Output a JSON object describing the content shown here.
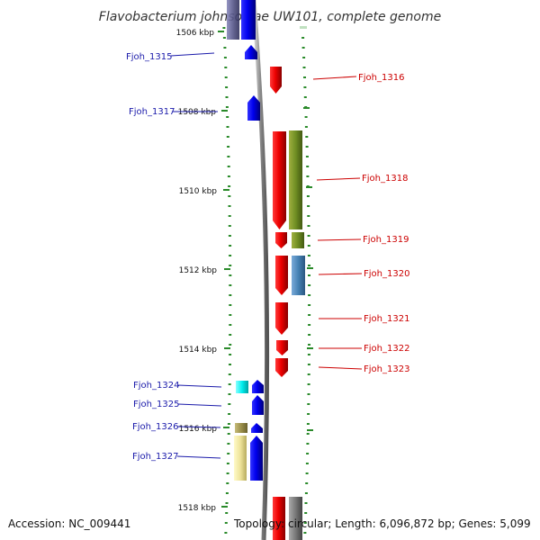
{
  "title": "Flavobacterium johnsoniae UW101, complete genome",
  "footer": {
    "accession": "Accession: NC_009441",
    "topology": "Topology: circular; Length: 6,096,872 bp; Genes: 5,099"
  },
  "colors": {
    "forward_label": "#1a1aaa",
    "reverse_label": "#cc0000",
    "tick": "#2a8a2a",
    "backbone": "#999999",
    "forward_cds": "#0000ee",
    "reverse_cds": "#ee0000"
  },
  "scale": {
    "unit": "kbp",
    "major_ticks": [
      {
        "kbp": 1506,
        "label": "1506 kbp"
      },
      {
        "kbp": 1508,
        "label": "1508 kbp"
      },
      {
        "kbp": 1510,
        "label": "1510 kbp"
      },
      {
        "kbp": 1512,
        "label": "1512 kbp"
      },
      {
        "kbp": 1514,
        "label": "1514 kbp"
      },
      {
        "kbp": 1516,
        "label": "1516 kbp"
      },
      {
        "kbp": 1518,
        "label": "1518 kbp"
      }
    ]
  },
  "genes": [
    {
      "id": "Fjoh_1315",
      "strand": "forward"
    },
    {
      "id": "Fjoh_1316",
      "strand": "reverse"
    },
    {
      "id": "Fjoh_1317",
      "strand": "forward"
    },
    {
      "id": "Fjoh_1318",
      "strand": "reverse"
    },
    {
      "id": "Fjoh_1319",
      "strand": "reverse"
    },
    {
      "id": "Fjoh_1320",
      "strand": "reverse"
    },
    {
      "id": "Fjoh_1321",
      "strand": "reverse"
    },
    {
      "id": "Fjoh_1322",
      "strand": "reverse"
    },
    {
      "id": "Fjoh_1323",
      "strand": "reverse"
    },
    {
      "id": "Fjoh_1324",
      "strand": "forward"
    },
    {
      "id": "Fjoh_1325",
      "strand": "forward"
    },
    {
      "id": "Fjoh_1326",
      "strand": "forward"
    },
    {
      "id": "Fjoh_1327",
      "strand": "forward"
    }
  ]
}
